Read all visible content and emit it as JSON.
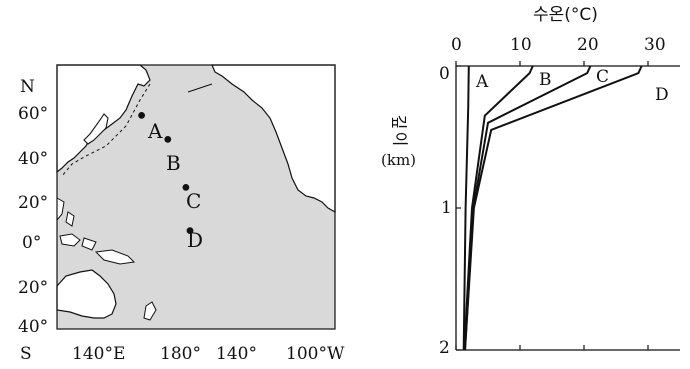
{
  "map": {
    "lat_labels": [
      "N",
      "60°",
      "40°",
      "20°",
      "0°",
      "20°",
      "40°",
      "S"
    ],
    "lon_labels": [
      "140°E",
      "180°",
      "140°",
      "100°W"
    ],
    "stations": [
      {
        "id": "A",
        "lat": 49,
        "lon": 162
      },
      {
        "id": "B",
        "lat": 39,
        "lon": 175
      },
      {
        "id": "C",
        "lat": 19,
        "lon": 184
      },
      {
        "id": "D",
        "lat": 1,
        "lon": 186
      }
    ]
  },
  "profile": {
    "title": "수온(°C)",
    "ylabel_chars": [
      "깊",
      "이"
    ],
    "ylabel_unit": "(km)"
  },
  "chart_data": {
    "type": "line",
    "title": "수온(°C)",
    "xlabel": "수온(°C)",
    "ylabel": "깊이 (km)",
    "xlim": [
      0,
      35
    ],
    "ylim": [
      0,
      2
    ],
    "y_inverted": true,
    "x_ticks": [
      "0",
      "10",
      "20",
      "30"
    ],
    "y_ticks": [
      "0",
      "1",
      "2"
    ],
    "series": [
      {
        "name": "A",
        "depth": [
          0,
          0.3,
          1.0,
          2.0
        ],
        "temp": [
          2.0,
          1.9,
          1.5,
          1.2
        ]
      },
      {
        "name": "B",
        "depth": [
          0,
          0.05,
          0.35,
          1.0,
          2.0
        ],
        "temp": [
          12.0,
          11.5,
          4.5,
          2.5,
          1.3
        ]
      },
      {
        "name": "C",
        "depth": [
          0,
          0.05,
          0.4,
          1.0,
          2.0
        ],
        "temp": [
          21.0,
          20.5,
          5.0,
          2.7,
          1.4
        ]
      },
      {
        "name": "D",
        "depth": [
          0,
          0.05,
          0.45,
          1.0,
          2.0
        ],
        "temp": [
          29.0,
          28.5,
          5.5,
          2.8,
          1.4
        ]
      }
    ]
  },
  "colors": {
    "ocean": "#d9d9d9",
    "land": "#ffffff",
    "line": "#111111"
  }
}
